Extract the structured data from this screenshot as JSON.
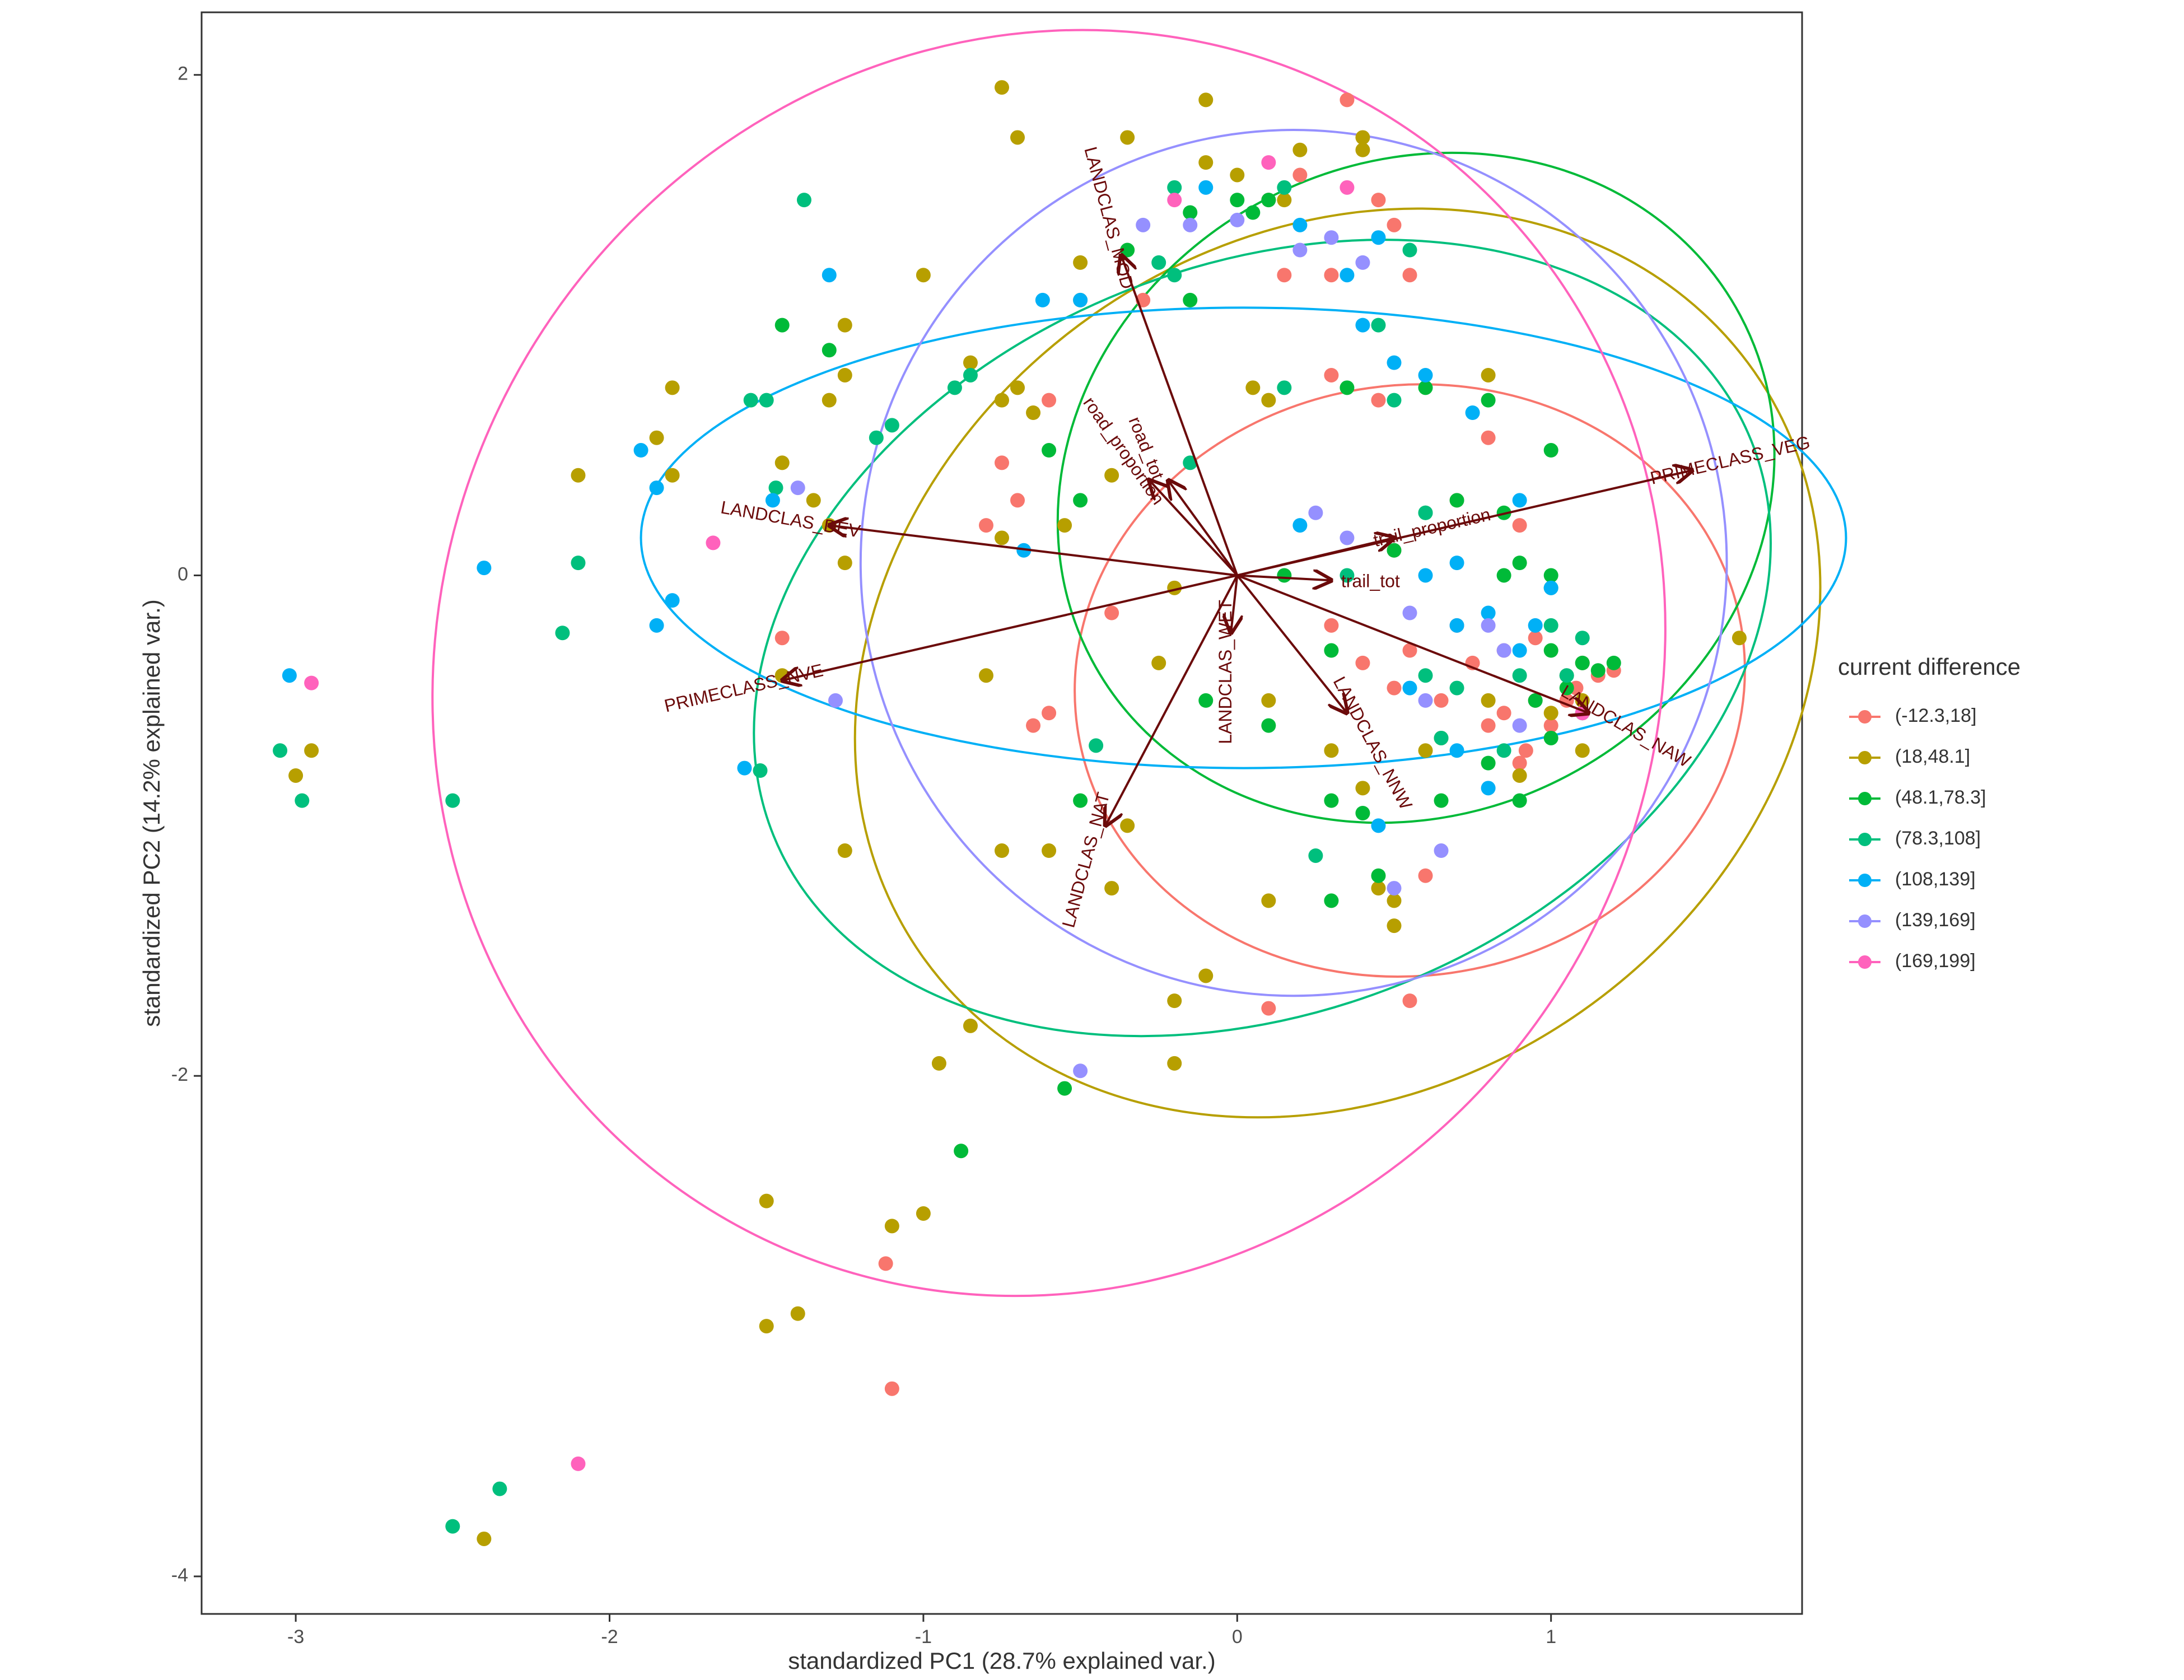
{
  "chart_data": {
    "type": "scatter",
    "subtype": "pca-biplot",
    "xlabel": "standardized PC1 (28.7% explained var.)",
    "ylabel": "standardized PC2 (14.2% explained var.)",
    "xlim": [
      -3.3,
      1.8
    ],
    "ylim": [
      -4.15,
      2.25
    ],
    "x_ticks": [
      -3,
      -2,
      -1,
      0,
      1
    ],
    "y_ticks": [
      -4,
      -2,
      0,
      2
    ],
    "grid": false,
    "legend": {
      "title": "current difference",
      "placement": "right",
      "entries": [
        "(-12.3,18]",
        "(18,48.1]",
        "(48.1,78.3]",
        "(78.3,108]",
        "(108,139]",
        "(139,169]",
        "(169,199]"
      ]
    },
    "series": [
      {
        "name": "(-12.3,18]",
        "color": "#F8766D",
        "ellipse": {
          "cx": 0.55,
          "cy": -0.42,
          "rx": 1.07,
          "ry": 1.18,
          "angle": -8
        },
        "points": [
          [
            0.45,
            0.7
          ],
          [
            0.3,
            1.2
          ],
          [
            0.5,
            1.4
          ],
          [
            0.2,
            1.6
          ],
          [
            -0.6,
            0.7
          ],
          [
            -0.8,
            0.2
          ],
          [
            -0.3,
            1.1
          ],
          [
            0.7,
            0.3
          ],
          [
            0.85,
            -0.3
          ],
          [
            0.95,
            -0.5
          ],
          [
            1.05,
            -0.4
          ],
          [
            1.1,
            -0.35
          ],
          [
            1.15,
            -0.4
          ],
          [
            1.2,
            -0.38
          ],
          [
            1.0,
            -0.6
          ],
          [
            0.92,
            -0.7
          ],
          [
            0.85,
            -0.55
          ],
          [
            0.55,
            -0.3
          ],
          [
            0.7,
            -0.2
          ],
          [
            -1.45,
            -0.25
          ],
          [
            -0.65,
            -0.6
          ],
          [
            -0.6,
            -0.55
          ],
          [
            -0.4,
            -0.15
          ],
          [
            0.9,
            -0.75
          ],
          [
            0.6,
            -1.2
          ],
          [
            0.55,
            -1.7
          ],
          [
            0.1,
            -1.73
          ],
          [
            -1.1,
            -3.25
          ],
          [
            -1.12,
            -2.75
          ],
          [
            0.3,
            -0.2
          ],
          [
            0.4,
            -0.35
          ],
          [
            0.5,
            -0.45
          ],
          [
            0.65,
            -0.5
          ],
          [
            0.75,
            -0.35
          ],
          [
            0.95,
            -0.25
          ],
          [
            1.05,
            -0.5
          ],
          [
            1.08,
            -0.45
          ],
          [
            0.8,
            -0.6
          ],
          [
            0.3,
            0.8
          ],
          [
            0.35,
            1.9
          ],
          [
            0.1,
            1.5
          ],
          [
            0.45,
            1.5
          ],
          [
            0.15,
            1.2
          ],
          [
            0.5,
            0.1
          ],
          [
            0.8,
            0.55
          ],
          [
            0.9,
            0.2
          ],
          [
            -0.7,
            0.3
          ],
          [
            -0.75,
            0.45
          ],
          [
            0.55,
            1.2
          ]
        ]
      },
      {
        "name": "(18,48.1]",
        "color": "#B79F00",
        "ellipse": {
          "cx": 0.32,
          "cy": -0.35,
          "rx": 1.62,
          "ry": 1.7,
          "angle": -35
        },
        "points": [
          [
            -0.75,
            1.95
          ],
          [
            -0.7,
            1.75
          ],
          [
            -0.35,
            1.75
          ],
          [
            -0.1,
            1.9
          ],
          [
            0.4,
            1.75
          ],
          [
            0.4,
            1.7
          ],
          [
            0.0,
            1.6
          ],
          [
            -0.1,
            1.65
          ],
          [
            0.2,
            1.7
          ],
          [
            0.15,
            1.5
          ],
          [
            -0.5,
            1.25
          ],
          [
            -0.5,
            1.1
          ],
          [
            -1.0,
            1.2
          ],
          [
            -1.25,
            1.0
          ],
          [
            -1.25,
            0.8
          ],
          [
            -1.3,
            0.7
          ],
          [
            -1.8,
            0.75
          ],
          [
            -1.85,
            0.55
          ],
          [
            -1.8,
            0.4
          ],
          [
            -2.1,
            0.4
          ],
          [
            -1.45,
            0.45
          ],
          [
            -1.35,
            0.3
          ],
          [
            -1.3,
            0.2
          ],
          [
            -1.25,
            0.05
          ],
          [
            -0.75,
            0.15
          ],
          [
            -0.75,
            0.7
          ],
          [
            -0.65,
            0.65
          ],
          [
            -0.7,
            0.75
          ],
          [
            -0.85,
            0.85
          ],
          [
            -0.55,
            0.2
          ],
          [
            -0.4,
            0.4
          ],
          [
            0.05,
            0.75
          ],
          [
            0.1,
            0.7
          ],
          [
            -0.2,
            -0.05
          ],
          [
            -0.25,
            -0.35
          ],
          [
            -0.8,
            -0.4
          ],
          [
            -1.25,
            -1.1
          ],
          [
            -1.45,
            -0.4
          ],
          [
            -0.75,
            -1.1
          ],
          [
            -0.6,
            -1.1
          ],
          [
            -0.35,
            -1.0
          ],
          [
            -0.4,
            -1.25
          ],
          [
            -0.85,
            -1.8
          ],
          [
            -0.95,
            -1.95
          ],
          [
            -0.2,
            -1.95
          ],
          [
            -0.2,
            -1.7
          ],
          [
            -0.1,
            -1.6
          ],
          [
            0.1,
            -1.3
          ],
          [
            0.5,
            -1.3
          ],
          [
            0.5,
            -1.4
          ],
          [
            0.45,
            -1.25
          ],
          [
            0.3,
            -0.7
          ],
          [
            0.1,
            -0.5
          ],
          [
            0.4,
            -0.85
          ],
          [
            0.65,
            -0.65
          ],
          [
            0.8,
            -0.5
          ],
          [
            0.9,
            -0.8
          ],
          [
            1.0,
            -0.55
          ],
          [
            1.1,
            -0.7
          ],
          [
            1.1,
            -0.5
          ],
          [
            1.6,
            -0.25
          ],
          [
            0.6,
            -0.7
          ],
          [
            -2.95,
            -0.7
          ],
          [
            -3.0,
            -0.8
          ],
          [
            -1.5,
            -2.5
          ],
          [
            -1.1,
            -2.6
          ],
          [
            -1.0,
            -2.55
          ],
          [
            -1.5,
            -3.0
          ],
          [
            -1.4,
            -2.95
          ],
          [
            -2.4,
            -3.85
          ],
          [
            0.8,
            0.8
          ]
        ]
      },
      {
        "name": "(48.1,78.3]",
        "color": "#00BA38",
        "ellipse": {
          "cx": 0.57,
          "cy": 0.35,
          "rx": 1.17,
          "ry": 1.3,
          "angle": -28
        },
        "points": [
          [
            0.05,
            1.45
          ],
          [
            0.1,
            1.5
          ],
          [
            0.0,
            1.5
          ],
          [
            -0.15,
            1.45
          ],
          [
            -0.35,
            1.3
          ],
          [
            -0.15,
            1.1
          ],
          [
            0.6,
            0.75
          ],
          [
            0.8,
            0.7
          ],
          [
            0.35,
            0.75
          ],
          [
            1.0,
            0.5
          ],
          [
            0.7,
            0.3
          ],
          [
            0.6,
            0.25
          ],
          [
            0.85,
            0.0
          ],
          [
            0.9,
            0.05
          ],
          [
            1.0,
            0.0
          ],
          [
            1.1,
            -0.35
          ],
          [
            1.15,
            -0.38
          ],
          [
            1.2,
            -0.35
          ],
          [
            1.05,
            -0.45
          ],
          [
            0.95,
            -0.5
          ],
          [
            1.0,
            -0.65
          ],
          [
            1.1,
            -0.55
          ],
          [
            0.8,
            -0.75
          ],
          [
            0.9,
            -0.9
          ],
          [
            0.65,
            -0.9
          ],
          [
            0.3,
            -0.9
          ],
          [
            0.45,
            -1.2
          ],
          [
            0.3,
            -1.3
          ],
          [
            0.4,
            -0.95
          ],
          [
            -0.6,
            0.5
          ],
          [
            -1.3,
            0.9
          ],
          [
            -1.45,
            1.0
          ],
          [
            -0.5,
            0.3
          ],
          [
            -0.1,
            -0.5
          ],
          [
            0.1,
            -0.6
          ],
          [
            -0.5,
            -0.9
          ],
          [
            -0.55,
            -2.05
          ],
          [
            -0.88,
            -2.3
          ],
          [
            0.15,
            0.0
          ],
          [
            0.5,
            0.1
          ],
          [
            0.3,
            -0.3
          ],
          [
            0.85,
            0.25
          ],
          [
            1.0,
            -0.3
          ]
        ]
      },
      {
        "name": "(78.3,108]",
        "color": "#00BF7D",
        "ellipse": {
          "cx": 0.08,
          "cy": -0.25,
          "rx": 1.68,
          "ry": 1.49,
          "angle": -22
        },
        "points": [
          [
            -1.38,
            1.5
          ],
          [
            -1.5,
            0.7
          ],
          [
            -1.55,
            0.7
          ],
          [
            -1.47,
            0.35
          ],
          [
            -1.1,
            0.6
          ],
          [
            -1.15,
            0.55
          ],
          [
            -0.9,
            0.75
          ],
          [
            -0.85,
            0.8
          ],
          [
            -0.2,
            1.55
          ],
          [
            -0.25,
            1.25
          ],
          [
            -0.2,
            1.2
          ],
          [
            0.15,
            1.55
          ],
          [
            0.55,
            1.3
          ],
          [
            0.45,
            1.0
          ],
          [
            0.15,
            0.75
          ],
          [
            0.5,
            0.7
          ],
          [
            0.35,
            0.0
          ],
          [
            0.6,
            0.25
          ],
          [
            1.0,
            -0.05
          ],
          [
            1.1,
            -0.25
          ],
          [
            1.05,
            -0.4
          ],
          [
            1.0,
            -0.2
          ],
          [
            0.9,
            -0.4
          ],
          [
            0.65,
            -0.65
          ],
          [
            0.6,
            -0.4
          ],
          [
            -1.52,
            -0.78
          ],
          [
            -2.1,
            0.05
          ],
          [
            -2.15,
            -0.23
          ],
          [
            -2.5,
            -0.9
          ],
          [
            -3.05,
            -0.7
          ],
          [
            -2.98,
            -0.9
          ],
          [
            -2.5,
            -3.8
          ],
          [
            -2.35,
            -3.65
          ],
          [
            0.25,
            -1.12
          ],
          [
            0.7,
            -0.45
          ],
          [
            0.85,
            -0.7
          ],
          [
            -0.45,
            -0.68
          ],
          [
            -0.15,
            0.45
          ]
        ]
      },
      {
        "name": "(108,139]",
        "color": "#00B0F6",
        "ellipse": {
          "cx": 0.02,
          "cy": 0.15,
          "rx": 1.92,
          "ry": 0.92,
          "angle": 0
        },
        "points": [
          [
            -1.9,
            0.5
          ],
          [
            -1.85,
            0.35
          ],
          [
            -1.48,
            0.3
          ],
          [
            -1.3,
            1.2
          ],
          [
            -1.8,
            -0.1
          ],
          [
            -1.85,
            -0.2
          ],
          [
            -2.4,
            0.03
          ],
          [
            -3.02,
            -0.4
          ],
          [
            -1.57,
            -0.77
          ],
          [
            -0.68,
            0.1
          ],
          [
            -0.62,
            1.1
          ],
          [
            -0.1,
            1.55
          ],
          [
            0.2,
            1.4
          ],
          [
            0.35,
            1.2
          ],
          [
            0.45,
            1.35
          ],
          [
            0.4,
            1.0
          ],
          [
            0.5,
            0.85
          ],
          [
            0.75,
            0.65
          ],
          [
            0.6,
            0.8
          ],
          [
            0.9,
            0.3
          ],
          [
            0.6,
            -0.0
          ],
          [
            0.7,
            0.05
          ],
          [
            0.8,
            -0.15
          ],
          [
            0.9,
            -0.3
          ],
          [
            1.0,
            -0.05
          ],
          [
            0.95,
            -0.2
          ],
          [
            0.55,
            -0.45
          ],
          [
            0.7,
            -0.2
          ],
          [
            0.45,
            -1.0
          ],
          [
            0.8,
            -0.85
          ],
          [
            -0.5,
            1.1
          ],
          [
            0.7,
            -0.7
          ],
          [
            0.2,
            0.2
          ]
        ]
      },
      {
        "name": "(139,169]",
        "color": "#9590FF",
        "ellipse": {
          "cx": 0.18,
          "cy": 0.05,
          "rx": 1.38,
          "ry": 1.73,
          "angle": -5
        },
        "points": [
          [
            -0.3,
            1.4
          ],
          [
            -0.15,
            1.4
          ],
          [
            0.3,
            1.35
          ],
          [
            0.4,
            1.25
          ],
          [
            0.2,
            1.3
          ],
          [
            0.25,
            0.25
          ],
          [
            0.35,
            0.15
          ],
          [
            0.55,
            -0.15
          ],
          [
            0.8,
            -0.2
          ],
          [
            0.6,
            -0.5
          ],
          [
            0.9,
            -0.6
          ],
          [
            0.65,
            -1.1
          ],
          [
            0.5,
            -1.25
          ],
          [
            -1.4,
            0.35
          ],
          [
            -1.28,
            -0.5
          ],
          [
            -0.5,
            -1.98
          ],
          [
            0.85,
            -0.3
          ],
          [
            0.0,
            1.42
          ]
        ]
      },
      {
        "name": "(169,199]",
        "color": "#FF62BC",
        "ellipse": {
          "cx": -0.6,
          "cy": -0.35,
          "rx": 2.05,
          "ry": 2.42,
          "angle": -58
        },
        "points": [
          [
            -1.67,
            0.13
          ],
          [
            -2.95,
            -0.43
          ],
          [
            -2.1,
            -3.55
          ],
          [
            0.35,
            1.55
          ],
          [
            0.1,
            1.65
          ],
          [
            -0.2,
            1.5
          ],
          [
            1.1,
            -0.55
          ]
        ]
      }
    ],
    "loadings": [
      {
        "label": "PRIMECLASS_VEG",
        "x": 1.45,
        "y": 0.42,
        "rotation": -13
      },
      {
        "label": "trail_proportion",
        "x": 0.5,
        "y": 0.15,
        "rotation": -13
      },
      {
        "label": "trail_tot",
        "x": 0.3,
        "y": -0.02,
        "rotation": 0
      },
      {
        "label": "LANDCLAS_NAW",
        "x": 1.12,
        "y": -0.55,
        "rotation": 30
      },
      {
        "label": "LANDCLAS_NNW",
        "x": 0.35,
        "y": -0.55,
        "rotation": 62
      },
      {
        "label": "LANDCLAS_WET",
        "x": -0.02,
        "y": -0.23,
        "rotation": -90
      },
      {
        "label": "LANDCLAS_NAT",
        "x": -0.42,
        "y": -1.0,
        "rotation": -75
      },
      {
        "label": "PRIMECLASS_NVE",
        "x": -1.45,
        "y": -0.42,
        "rotation": -13
      },
      {
        "label": "LANDCLAS_DEV",
        "x": -1.3,
        "y": 0.2,
        "rotation": 10
      },
      {
        "label": "road_proportion",
        "x": -0.28,
        "y": 0.38,
        "rotation": 55
      },
      {
        "label": "road_tot",
        "x": -0.22,
        "y": 0.38,
        "rotation": 68
      },
      {
        "label": "LANDCLAS_MOD",
        "x": -0.37,
        "y": 1.28,
        "rotation": 75
      }
    ]
  }
}
